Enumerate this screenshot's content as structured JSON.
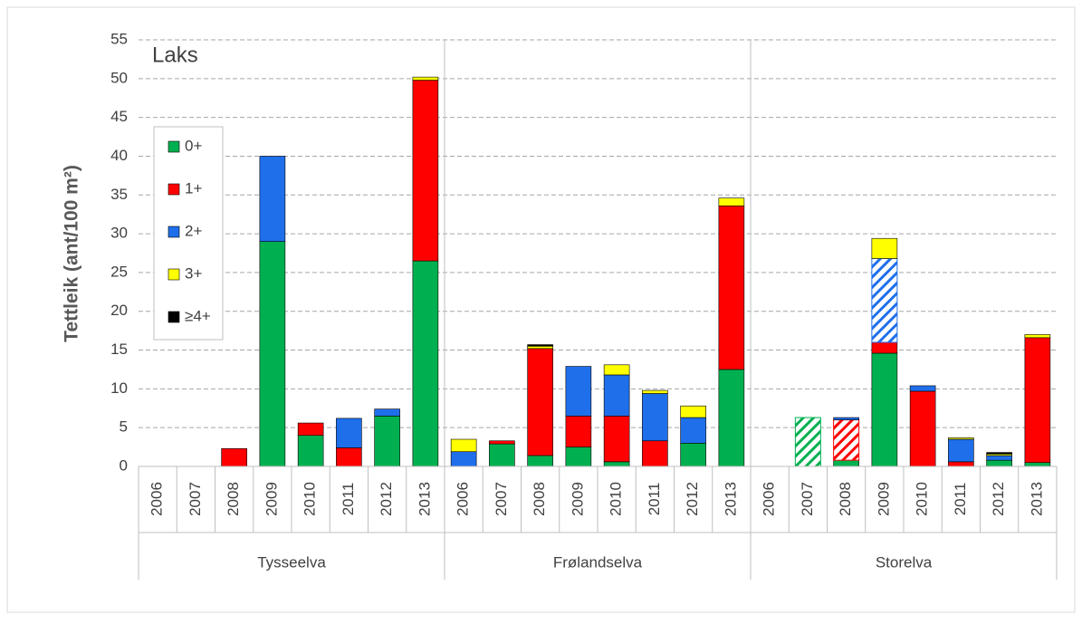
{
  "chart_data": {
    "type": "stacked-bar",
    "title": "Laks",
    "y_label": "Tettleik (ant/100 m²)",
    "categories": [
      "2006",
      "2007",
      "2008",
      "2009",
      "2010",
      "2011",
      "2012",
      "2013",
      "2006",
      "2007",
      "2008",
      "2009",
      "2010",
      "2011",
      "2012",
      "2013",
      "2006",
      "2007",
      "2008",
      "2009",
      "2010",
      "2011",
      "2012",
      "2013"
    ],
    "groups": [
      "Tysseelva",
      "Frølandselva",
      "Storelva"
    ],
    "series": [
      {
        "name": "0+",
        "color": "#00b050",
        "hatched": [
          17
        ],
        "values": [
          null,
          null,
          null,
          29,
          4,
          null,
          6.5,
          26.5,
          null,
          2.9,
          1.4,
          2.5,
          0.6,
          null,
          3,
          12.5,
          null,
          6.3,
          0.8,
          14.6,
          null,
          null,
          0.8,
          0.5
        ]
      },
      {
        "name": "1+",
        "color": "#ff0000",
        "hatched": [
          18
        ],
        "values": [
          null,
          null,
          2.3,
          null,
          1.6,
          2.4,
          null,
          23.3,
          null,
          0.4,
          13.8,
          4,
          5.9,
          3.3,
          null,
          21.1,
          null,
          null,
          5.2,
          1.4,
          9.7,
          0.6,
          null,
          16.1
        ]
      },
      {
        "name": "2+",
        "color": "#1f6feb",
        "hatched": [
          19
        ],
        "values": [
          null,
          null,
          null,
          11,
          null,
          3.8,
          0.9,
          null,
          1.9,
          null,
          null,
          6.4,
          5.3,
          6.1,
          3.3,
          null,
          null,
          null,
          0.3,
          10.8,
          0.7,
          2.9,
          0.6,
          null
        ]
      },
      {
        "name": "3+",
        "color": "#ffff00",
        "hatched": [],
        "values": [
          null,
          null,
          null,
          null,
          null,
          null,
          null,
          0.4,
          1.6,
          null,
          0.3,
          null,
          1.3,
          0.4,
          1.5,
          1,
          null,
          null,
          null,
          2.6,
          null,
          0.2,
          0.2,
          0.4
        ]
      },
      {
        "name": "≥4+",
        "color": "#000000",
        "hatched": [],
        "values": [
          null,
          null,
          null,
          null,
          null,
          null,
          null,
          null,
          null,
          null,
          0.2,
          null,
          null,
          null,
          null,
          null,
          null,
          null,
          null,
          null,
          null,
          null,
          0.2,
          null
        ]
      }
    ],
    "ylim": [
      0,
      55
    ],
    "yticks": [
      0,
      5,
      10,
      15,
      20,
      25,
      30,
      35,
      40,
      45,
      50,
      55
    ],
    "grid": true
  }
}
